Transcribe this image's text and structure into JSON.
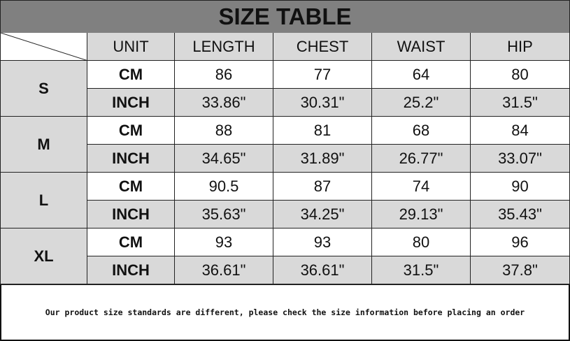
{
  "title": "SIZE TABLE",
  "columns": [
    "UNIT",
    "LENGTH",
    "CHEST",
    "WAIST",
    "HIP"
  ],
  "rows": [
    {
      "size": "S",
      "cm": [
        "CM",
        "86",
        "77",
        "64",
        "80"
      ],
      "inch": [
        "INCH",
        "33.86\"",
        "30.31\"",
        "25.2\"",
        "31.5\""
      ]
    },
    {
      "size": "M",
      "cm": [
        "CM",
        "88",
        "81",
        "68",
        "84"
      ],
      "inch": [
        "INCH",
        "34.65\"",
        "31.89\"",
        "26.77\"",
        "33.07\""
      ]
    },
    {
      "size": "L",
      "cm": [
        "CM",
        "90.5",
        "87",
        "74",
        "90"
      ],
      "inch": [
        "INCH",
        "35.63\"",
        "34.25\"",
        "29.13\"",
        "35.43\""
      ]
    },
    {
      "size": "XL",
      "cm": [
        "CM",
        "93",
        "93",
        "80",
        "96"
      ],
      "inch": [
        "INCH",
        "36.61\"",
        "36.61\"",
        "31.5\"",
        "37.8\""
      ]
    }
  ],
  "footer": "Our product size standards are different, please check the size information before placing an order",
  "colors": {
    "title_bg": "#808080",
    "cell_grey": "#d9d9d9",
    "border": "#222222"
  }
}
